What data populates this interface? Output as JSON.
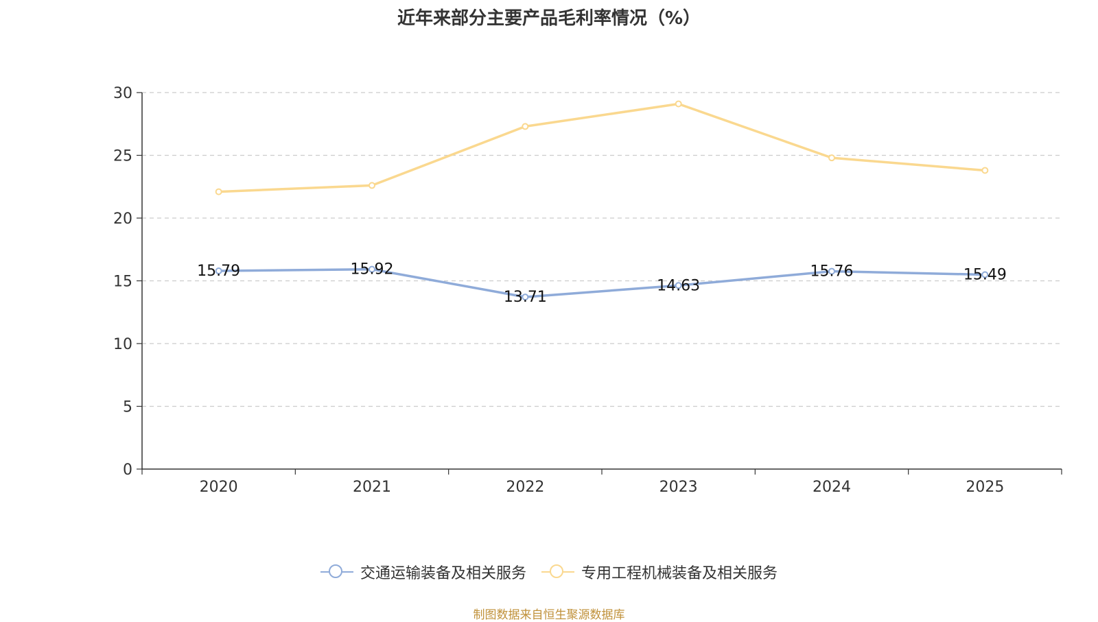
{
  "title": "近年来部分主要产品毛利率情况（%）",
  "source": "制图数据来自恒生聚源数据库",
  "chart_data": {
    "type": "line",
    "title": "近年来部分主要产品毛利率情况（%）",
    "xlabel": "",
    "ylabel": "",
    "categories": [
      "2020",
      "2021",
      "2022",
      "2023",
      "2024",
      "2025"
    ],
    "ylim": [
      0,
      30
    ],
    "yticks": [
      0,
      5,
      10,
      15,
      20,
      25,
      30
    ],
    "grid": true,
    "legend_position": "bottom",
    "series": [
      {
        "name": "交通运输装备及相关服务",
        "color": "#8fabd9",
        "values": [
          15.79,
          15.92,
          13.71,
          14.63,
          15.76,
          15.49
        ],
        "labels": [
          "15.79",
          "15.92",
          "13.71",
          "14.63",
          "15.76",
          "15.49"
        ]
      },
      {
        "name": "专用工程机械装备及相关服务",
        "color": "#fad88f",
        "values": [
          22.1,
          22.6,
          27.3,
          29.1,
          24.8,
          23.8
        ]
      }
    ]
  }
}
